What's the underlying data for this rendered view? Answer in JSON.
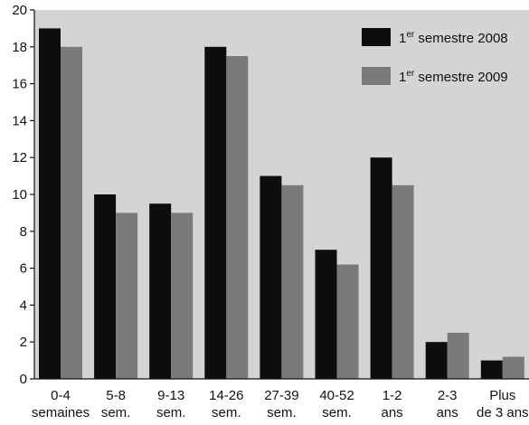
{
  "chart_data": {
    "type": "bar",
    "title": "",
    "xlabel": "",
    "ylabel": "",
    "ylim": [
      0,
      20
    ],
    "yticks": [
      0,
      2,
      4,
      6,
      8,
      10,
      12,
      14,
      16,
      18,
      20
    ],
    "grid": false,
    "legend_position": "top-right",
    "categories": [
      [
        "0-4",
        "semaines"
      ],
      [
        "5-8",
        "sem."
      ],
      [
        "9-13",
        "sem."
      ],
      [
        "14-26",
        "sem."
      ],
      [
        "27-39",
        "sem."
      ],
      [
        "40-52",
        "sem."
      ],
      [
        "1-2",
        "ans"
      ],
      [
        "2-3",
        "ans"
      ],
      [
        "Plus",
        "de 3 ans"
      ]
    ],
    "series": [
      {
        "name": "1er semestre 2008",
        "legend": {
          "prefix": "1",
          "sup": "er",
          "suffix": " semestre 2008"
        },
        "color": "#0d0d0d",
        "values": [
          19,
          10,
          9.5,
          18,
          11,
          7,
          12,
          2,
          1
        ]
      },
      {
        "name": "1er semestre 2009",
        "legend": {
          "prefix": "1",
          "sup": "er",
          "suffix": " semestre 2009"
        },
        "color": "#7a7a7a",
        "values": [
          18,
          9,
          9,
          17.5,
          10.5,
          6.2,
          10.5,
          2.5,
          1.2
        ]
      }
    ],
    "colors": {
      "plot_background": "#d4d4d4",
      "axis": "#111111"
    }
  }
}
